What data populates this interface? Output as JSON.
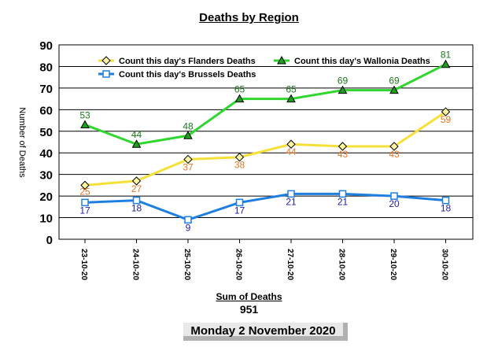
{
  "chart_data": {
    "type": "line",
    "title": "Deaths by Region",
    "ylabel": "Number of Deaths",
    "xlabel": "",
    "ylim": [
      0,
      90
    ],
    "yticks": [
      0,
      10,
      20,
      30,
      40,
      50,
      60,
      70,
      80,
      90
    ],
    "grid": true,
    "legend_position": "top",
    "categories": [
      "23-10-20",
      "24-10-20",
      "25-10-20",
      "26-10-20",
      "27-10-20",
      "28-10-20",
      "29-10-20",
      "30-10-20"
    ],
    "series": [
      {
        "name": "Count this day's Flanders Deaths",
        "color": "#f5e03a",
        "label_color": "#e87722",
        "marker": "diamond",
        "values": [
          25,
          27,
          37,
          38,
          44,
          43,
          43,
          59
        ]
      },
      {
        "name": "Count this day's Wallonia Deaths",
        "color": "#2ed62e",
        "label_color": "#1a7a1a",
        "marker": "triangle",
        "values": [
          53,
          44,
          48,
          65,
          65,
          69,
          69,
          81
        ]
      },
      {
        "name": "Count this day's Brussels Deaths",
        "color": "#1f7fe0",
        "label_color": "#2020a0",
        "marker": "square",
        "values": [
          17,
          18,
          9,
          17,
          21,
          21,
          20,
          18
        ]
      }
    ]
  },
  "summary": {
    "sum_label": "Sum of Deaths",
    "sum_value": "951",
    "date": "Monday 2 November 2020"
  }
}
